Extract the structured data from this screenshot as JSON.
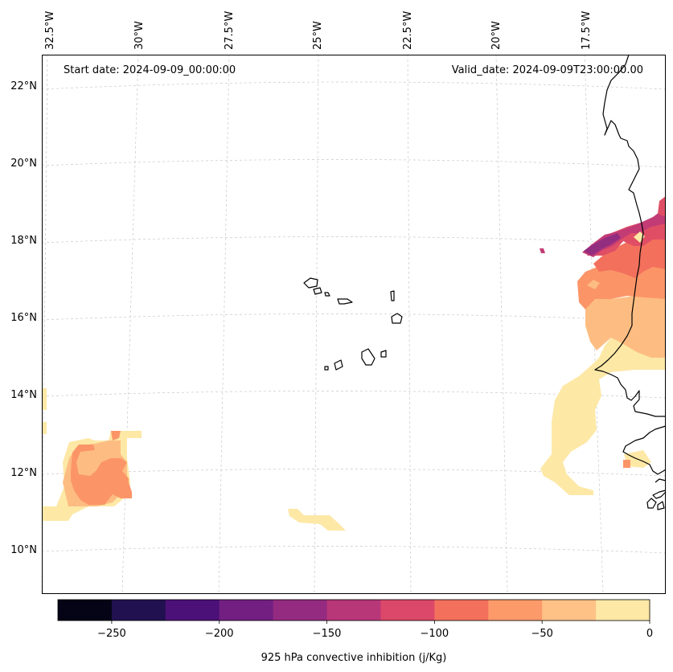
{
  "map": {
    "start_date_label": "Start date: 2024-09-09_00:00:00",
    "valid_date_label": "Valid_date: 2024-09-09T23:00:00.00",
    "lon_labels": [
      "32.5°W",
      "30°W",
      "27.5°W",
      "25°W",
      "22.5°W",
      "20°W",
      "17.5°W"
    ],
    "lat_labels": [
      "22°N",
      "20°N",
      "18°N",
      "16°N",
      "14°N",
      "12°N",
      "10°N"
    ],
    "fill_colors": {
      "band_0_25": "#fde8a6",
      "band_25_50": "#fdbd82",
      "band_50_75": "#fb9568",
      "band_75_100": "#f3705d",
      "band_100_125": "#e04e66",
      "band_125_150": "#c23b75",
      "band_150_175": "#922d80"
    }
  },
  "colorbar": {
    "label": "925 hPa convective inhibition (j/Kg)",
    "ticks": [
      "−250",
      "−200",
      "−150",
      "−100",
      "−50",
      "0"
    ],
    "tick_values": [
      -250,
      -200,
      -150,
      -100,
      -50,
      0
    ],
    "range": [
      -275,
      0
    ],
    "colors": [
      "#050416",
      "#221150",
      "#4c1178",
      "#721f81",
      "#942b80",
      "#b83779",
      "#dc4869",
      "#f3705d",
      "#fd9a6a",
      "#fec287",
      "#fde8a6"
    ]
  }
}
